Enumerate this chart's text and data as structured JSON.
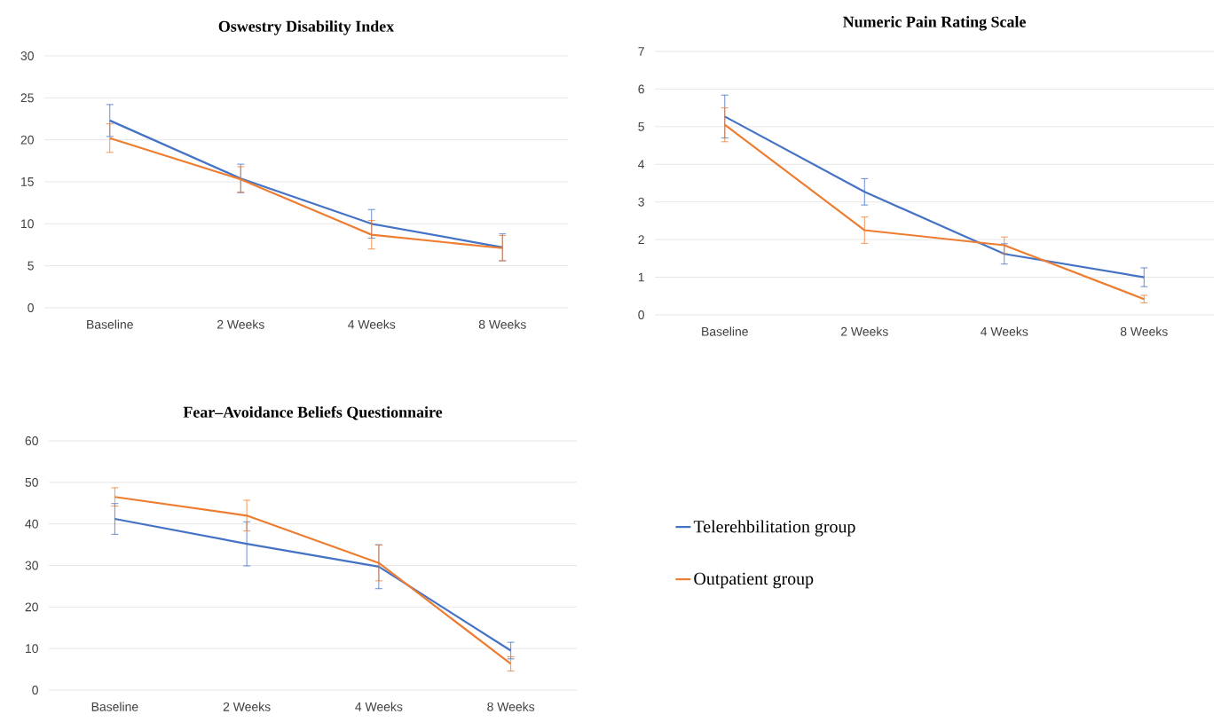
{
  "chart_data": [
    {
      "type": "line",
      "title": "Oswestry Disability Index",
      "categories": [
        "Baseline",
        "2 Weeks",
        "4 Weeks",
        "8 Weeks"
      ],
      "ylim": [
        0,
        30
      ],
      "yticks": [
        0,
        5,
        10,
        15,
        20,
        25,
        30
      ],
      "grid": "y",
      "series": [
        {
          "color": "#4472c4",
          "values": [
            22.3,
            15.4,
            10.0,
            7.2
          ],
          "errors": [
            1.9,
            1.7,
            1.7,
            1.6
          ]
        },
        {
          "color": "#ed7d31",
          "values": [
            20.2,
            15.3,
            8.7,
            7.1
          ],
          "errors": [
            1.7,
            1.5,
            1.7,
            1.5
          ]
        }
      ]
    },
    {
      "type": "line",
      "title": "Numeric Pain Rating Scale",
      "categories": [
        "Baseline",
        "2 Weeks",
        "4 Weeks",
        "8 Weeks"
      ],
      "ylim": [
        0,
        7
      ],
      "yticks": [
        0,
        1,
        2,
        3,
        4,
        5,
        6,
        7
      ],
      "grid": "y",
      "series": [
        {
          "color": "#4472c4",
          "values": [
            5.27,
            3.27,
            1.62,
            1.0
          ],
          "errors": [
            0.57,
            0.35,
            0.27,
            0.25
          ]
        },
        {
          "color": "#ed7d31",
          "values": [
            5.05,
            2.25,
            1.85,
            0.42
          ],
          "errors": [
            0.45,
            0.35,
            0.22,
            0.1
          ]
        }
      ]
    },
    {
      "type": "line",
      "title": "Fear–Avoidance Beliefs Questionnaire",
      "categories": [
        "Baseline",
        "2 Weeks",
        "4 Weeks",
        "8 Weeks"
      ],
      "ylim": [
        0,
        60
      ],
      "yticks": [
        0,
        10,
        20,
        30,
        40,
        50,
        60
      ],
      "grid": "y",
      "legend": "right",
      "series": [
        {
          "name": "Telerehbilitation group",
          "color": "#4472c4",
          "values": [
            41.2,
            35.2,
            29.7,
            9.5
          ],
          "errors": [
            3.7,
            5.3,
            5.3,
            2.0
          ]
        },
        {
          "name": "Outpatient group",
          "color": "#ed7d31",
          "values": [
            46.5,
            42.0,
            30.6,
            6.3
          ],
          "errors": [
            2.2,
            3.7,
            4.3,
            1.7
          ]
        }
      ]
    }
  ]
}
